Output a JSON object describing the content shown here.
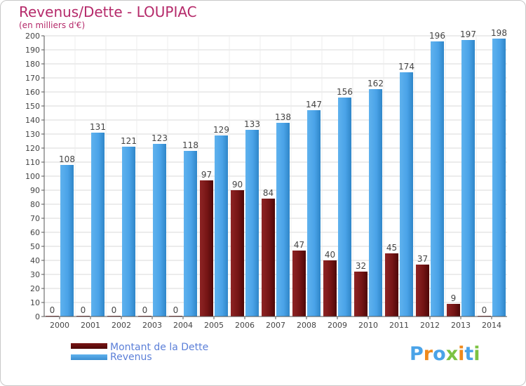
{
  "title": "Revenus/Dette - LOUPIAC",
  "subtitle": "(en milliers d'€)",
  "brand": "Proxiti",
  "colors": {
    "title": "#b52a6a",
    "debt": "#7a1515",
    "revenue": "#4aa3e8",
    "legend_text": "#5b7fd8",
    "grid": "#d8d8d8"
  },
  "chart_data": {
    "type": "bar",
    "categories": [
      "2000",
      "2001",
      "2002",
      "2003",
      "2004",
      "2005",
      "2006",
      "2007",
      "2008",
      "2009",
      "2010",
      "2011",
      "2012",
      "2013",
      "2014"
    ],
    "series": [
      {
        "name": "Montant de la Dette",
        "values": [
          0,
          0,
          0,
          0,
          0,
          97,
          90,
          84,
          47,
          40,
          32,
          45,
          37,
          9,
          0
        ]
      },
      {
        "name": "Revenus",
        "values": [
          108,
          131,
          121,
          123,
          118,
          129,
          133,
          138,
          147,
          156,
          162,
          174,
          196,
          197,
          198
        ]
      }
    ],
    "ylim": [
      0,
      200
    ],
    "yticks": [
      0,
      10,
      20,
      30,
      40,
      50,
      60,
      70,
      80,
      90,
      100,
      110,
      120,
      130,
      140,
      150,
      160,
      170,
      180,
      190,
      200
    ],
    "grid": true,
    "legend": "bottom-left"
  }
}
